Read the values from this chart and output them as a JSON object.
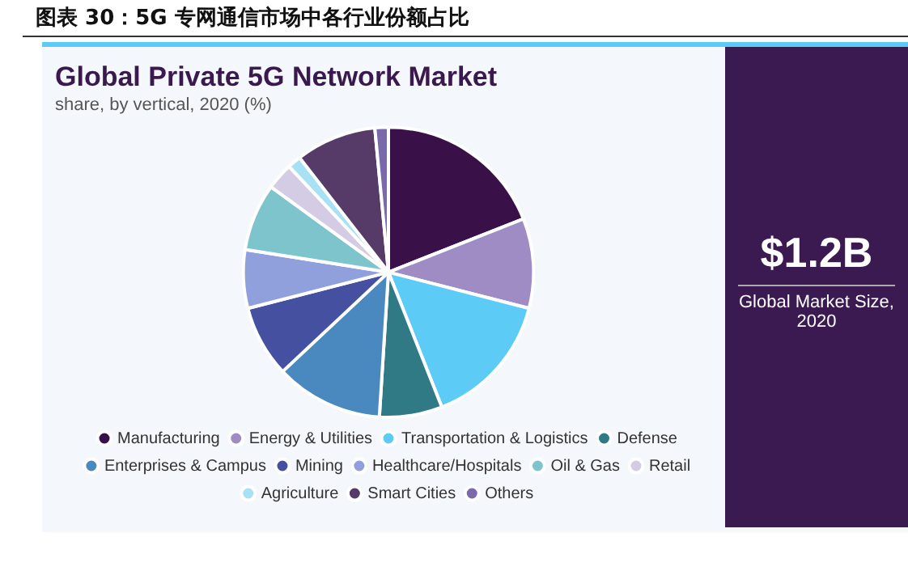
{
  "chart_data": {
    "type": "pie",
    "title": "Global Private 5G Network Market",
    "subtitle": "share, by vertical, 2020 (%)",
    "annotations": [
      "图表 30：5G 专网通信市场中各行业份额占比",
      "$1.2B",
      "Global Market Size, 2020"
    ],
    "categories": [
      "Manufacturing",
      "Energy & Utilities",
      "Transportation & Logistics",
      "Defense",
      "Enterprises & Campus",
      "Mining",
      "Healthcare/Hospitals",
      "Oil & Gas",
      "Retail",
      "Agriculture",
      "Smart Cities",
      "Others"
    ],
    "values": [
      19,
      10,
      15,
      7,
      12,
      8,
      6.5,
      7.5,
      3,
      1.5,
      9,
      1.5
    ],
    "colors": [
      "#3a1048",
      "#a08cc4",
      "#5ccbf5",
      "#2f7a85",
      "#4a88c0",
      "#4650a0",
      "#8fa0dc",
      "#7ec4cc",
      "#d4cce4",
      "#a8e0f4",
      "#563a68",
      "#7a6aac"
    ],
    "legend": "bottom"
  }
}
